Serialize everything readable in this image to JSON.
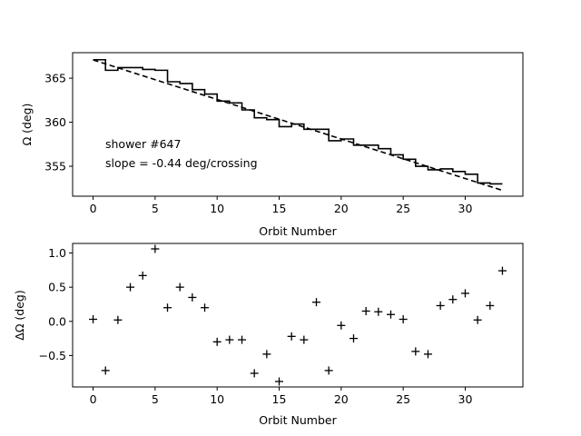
{
  "chart_data": [
    {
      "type": "line",
      "xlabel": "Orbit Number",
      "ylabel": "Ω (deg)",
      "xlim": [
        -1.65,
        34.65
      ],
      "ylim": [
        351.6,
        367.9
      ],
      "xticks": [
        0,
        5,
        10,
        15,
        20,
        25,
        30
      ],
      "yticks": [
        355,
        360,
        365
      ],
      "annotations": [
        "shower #647",
        "slope = -0.44 deg/crossing"
      ],
      "series": [
        {
          "style": "step",
          "color": "#000000",
          "x": [
            0,
            1,
            2,
            3,
            4,
            5,
            6,
            7,
            8,
            9,
            10,
            11,
            12,
            13,
            14,
            15,
            16,
            17,
            18,
            19,
            20,
            21,
            22,
            23,
            24,
            25,
            26,
            27,
            28,
            29,
            30,
            31,
            32,
            33
          ],
          "y": [
            367.1,
            365.9,
            366.2,
            366.2,
            366.0,
            365.9,
            364.6,
            364.4,
            363.7,
            363.2,
            362.4,
            362.2,
            361.4,
            360.5,
            360.3,
            359.5,
            359.8,
            359.2,
            359.2,
            357.9,
            358.1,
            357.4,
            357.4,
            357.0,
            356.3,
            355.8,
            355.0,
            354.6,
            354.7,
            354.4,
            354.1,
            353.1,
            353.0,
            353.0
          ]
        },
        {
          "style": "dashed",
          "color": "#000000",
          "x": [
            0,
            33
          ],
          "y": [
            367.08,
            352.26
          ]
        }
      ]
    },
    {
      "type": "scatter",
      "xlabel": "Orbit Number",
      "ylabel": "ΔΩ (deg)",
      "xlim": [
        -1.65,
        34.65
      ],
      "ylim": [
        -0.96,
        1.14
      ],
      "xticks": [
        0,
        5,
        10,
        15,
        20,
        25,
        30
      ],
      "yticks": [
        -0.5,
        0.0,
        0.5,
        1.0
      ],
      "marker": "+",
      "x": [
        0,
        1,
        2,
        3,
        4,
        5,
        6,
        7,
        8,
        9,
        10,
        11,
        12,
        13,
        14,
        15,
        16,
        17,
        18,
        19,
        20,
        21,
        22,
        23,
        24,
        25,
        26,
        27,
        28,
        29,
        30,
        31,
        32,
        33
      ],
      "y": [
        0.03,
        -0.72,
        0.02,
        0.5,
        0.67,
        1.06,
        0.2,
        0.5,
        0.35,
        0.2,
        -0.3,
        -0.27,
        -0.27,
        -0.76,
        -0.48,
        -0.88,
        -0.22,
        -0.27,
        0.28,
        -0.72,
        -0.06,
        -0.25,
        0.15,
        0.14,
        0.1,
        0.03,
        -0.44,
        -0.48,
        0.23,
        0.32,
        0.41,
        0.02,
        0.23,
        0.74
      ]
    }
  ]
}
